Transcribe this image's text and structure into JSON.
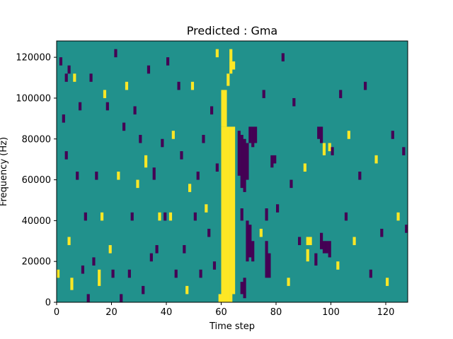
{
  "chart_data": {
    "type": "heatmap",
    "title": "Predicted : Gma",
    "xlabel": "Time step",
    "ylabel": "Frequency (Hz)",
    "xlim": [
      0,
      128
    ],
    "ylim": [
      0,
      128000
    ],
    "xticks": [
      0,
      20,
      40,
      60,
      80,
      100,
      120
    ],
    "yticks": [
      0,
      20000,
      40000,
      60000,
      80000,
      100000,
      120000
    ],
    "xtick_labels": [
      "0",
      "20",
      "40",
      "60",
      "80",
      "100",
      "120"
    ],
    "ytick_labels": [
      "0",
      "20000",
      "40000",
      "60000",
      "80000",
      "100000",
      "120000"
    ],
    "grid": false,
    "colormap": "viridis",
    "colors": {
      "low": "#440154",
      "mid": "#21918c",
      "high": "#fde725"
    },
    "background_level": "mid",
    "cells": [
      {
        "t": 59,
        "f_from": 0,
        "f_to": 4000,
        "level": "high"
      },
      {
        "t": 60,
        "f_from": 0,
        "f_to": 86000,
        "level": "high"
      },
      {
        "t": 61,
        "f_from": 0,
        "f_to": 86000,
        "level": "high"
      },
      {
        "t": 62,
        "f_from": 0,
        "f_to": 86000,
        "level": "high"
      },
      {
        "t": 63,
        "f_from": 0,
        "f_to": 86000,
        "level": "high"
      },
      {
        "t": 64,
        "f_from": 4000,
        "f_to": 86000,
        "level": "high"
      },
      {
        "t": 60,
        "f_from": 86000,
        "f_to": 104000,
        "level": "high"
      },
      {
        "t": 61,
        "f_from": 86000,
        "f_to": 104000,
        "level": "high"
      },
      {
        "t": 62,
        "f_from": 106000,
        "f_to": 112000,
        "level": "high"
      },
      {
        "t": 63,
        "f_from": 112000,
        "f_to": 118000,
        "level": "high"
      },
      {
        "t": 58,
        "f_from": 120000,
        "f_to": 124000,
        "level": "high"
      },
      {
        "t": 66,
        "f_from": 62000,
        "f_to": 84000,
        "level": "low"
      },
      {
        "t": 67,
        "f_from": 56000,
        "f_to": 82000,
        "level": "low"
      },
      {
        "t": 68,
        "f_from": 54000,
        "f_to": 80000,
        "level": "low"
      },
      {
        "t": 69,
        "f_from": 60000,
        "f_to": 78000,
        "level": "low"
      },
      {
        "t": 70,
        "f_from": 78000,
        "f_to": 86000,
        "level": "low"
      },
      {
        "t": 71,
        "f_from": 76000,
        "f_to": 86000,
        "level": "low"
      },
      {
        "t": 72,
        "f_from": 78000,
        "f_to": 86000,
        "level": "low"
      },
      {
        "t": 67,
        "f_from": 4000,
        "f_to": 10000,
        "level": "low"
      },
      {
        "t": 68,
        "f_from": 2000,
        "f_to": 12000,
        "level": "low"
      },
      {
        "t": 69,
        "f_from": 20000,
        "f_to": 40000,
        "level": "low"
      },
      {
        "t": 70,
        "f_from": 22000,
        "f_to": 38000,
        "level": "low"
      },
      {
        "t": 71,
        "f_from": 20000,
        "f_to": 30000,
        "level": "low"
      },
      {
        "t": 67,
        "f_from": 40000,
        "f_to": 46000,
        "level": "low"
      },
      {
        "t": 76,
        "f_from": 12000,
        "f_to": 30000,
        "level": "low"
      },
      {
        "t": 77,
        "f_from": 12000,
        "f_to": 24000,
        "level": "low"
      },
      {
        "t": 76,
        "f_from": 40000,
        "f_to": 46000,
        "level": "low"
      },
      {
        "t": 78,
        "f_from": 66000,
        "f_to": 72000,
        "level": "low"
      },
      {
        "t": 79,
        "f_from": 68000,
        "f_to": 72000,
        "level": "low"
      },
      {
        "t": 96,
        "f_from": 26000,
        "f_to": 34000,
        "level": "low"
      },
      {
        "t": 97,
        "f_from": 24000,
        "f_to": 30000,
        "level": "low"
      },
      {
        "t": 98,
        "f_from": 24000,
        "f_to": 30000,
        "level": "low"
      },
      {
        "t": 99,
        "f_from": 22000,
        "f_to": 30000,
        "level": "low"
      },
      {
        "t": 91,
        "f_from": 28000,
        "f_to": 32000,
        "level": "high"
      },
      {
        "t": 92,
        "f_from": 28000,
        "f_to": 32000,
        "level": "high"
      },
      {
        "t": 91,
        "f_from": 20000,
        "f_to": 26000,
        "level": "high"
      },
      {
        "t": 94,
        "f_from": 18000,
        "f_to": 24000,
        "level": "low"
      },
      {
        "t": 95,
        "f_from": 80000,
        "f_to": 86000,
        "level": "low"
      },
      {
        "t": 96,
        "f_from": 78000,
        "f_to": 86000,
        "level": "low"
      },
      {
        "t": 97,
        "f_from": 72000,
        "f_to": 78000,
        "level": "high"
      },
      {
        "t": 99,
        "f_from": 74000,
        "f_to": 78000,
        "level": "high"
      },
      {
        "t": 100,
        "f_from": 72000,
        "f_to": 76000,
        "level": "low"
      },
      {
        "t": 127,
        "f_from": 34000,
        "f_to": 36000,
        "level": "low"
      },
      {
        "t": 127,
        "f_from": 36000,
        "f_to": 38000,
        "level": "low"
      },
      {
        "t": 63,
        "f_from": 118000,
        "f_to": 124000,
        "level": "high"
      },
      {
        "t": 64,
        "f_from": 114000,
        "f_to": 118000,
        "level": "high"
      },
      {
        "t": 0,
        "f_from": 12000,
        "f_to": 16000,
        "level": "high"
      },
      {
        "t": 1,
        "f_from": 116000,
        "f_to": 120000,
        "level": "low"
      },
      {
        "t": 2,
        "f_from": 88000,
        "f_to": 92000,
        "level": "low"
      },
      {
        "t": 3,
        "f_from": 70000,
        "f_to": 74000,
        "level": "low"
      },
      {
        "t": 3,
        "f_from": 108000,
        "f_to": 112000,
        "level": "low"
      },
      {
        "t": 4,
        "f_from": 112000,
        "f_to": 116000,
        "level": "low"
      },
      {
        "t": 4,
        "f_from": 28000,
        "f_to": 32000,
        "level": "high"
      },
      {
        "t": 5,
        "f_from": 6000,
        "f_to": 12000,
        "level": "high"
      },
      {
        "t": 6,
        "f_from": 108000,
        "f_to": 112000,
        "level": "high"
      },
      {
        "t": 7,
        "f_from": 60000,
        "f_to": 64000,
        "level": "low"
      },
      {
        "t": 8,
        "f_from": 94000,
        "f_to": 98000,
        "level": "low"
      },
      {
        "t": 9,
        "f_from": 14000,
        "f_to": 18000,
        "level": "low"
      },
      {
        "t": 10,
        "f_from": 40000,
        "f_to": 44000,
        "level": "low"
      },
      {
        "t": 11,
        "f_from": 0,
        "f_to": 4000,
        "level": "low"
      },
      {
        "t": 12,
        "f_from": 108000,
        "f_to": 112000,
        "level": "low"
      },
      {
        "t": 13,
        "f_from": 18000,
        "f_to": 22000,
        "level": "low"
      },
      {
        "t": 14,
        "f_from": 60000,
        "f_to": 64000,
        "level": "low"
      },
      {
        "t": 15,
        "f_from": 8000,
        "f_to": 16000,
        "level": "high"
      },
      {
        "t": 16,
        "f_from": 40000,
        "f_to": 44000,
        "level": "high"
      },
      {
        "t": 17,
        "f_from": 100000,
        "f_to": 104000,
        "level": "high"
      },
      {
        "t": 18,
        "f_from": 94000,
        "f_to": 98000,
        "level": "low"
      },
      {
        "t": 19,
        "f_from": 24000,
        "f_to": 28000,
        "level": "high"
      },
      {
        "t": 20,
        "f_from": 12000,
        "f_to": 16000,
        "level": "low"
      },
      {
        "t": 21,
        "f_from": 120000,
        "f_to": 124000,
        "level": "low"
      },
      {
        "t": 22,
        "f_from": 60000,
        "f_to": 64000,
        "level": "high"
      },
      {
        "t": 23,
        "f_from": 0,
        "f_to": 4000,
        "level": "low"
      },
      {
        "t": 24,
        "f_from": 84000,
        "f_to": 88000,
        "level": "low"
      },
      {
        "t": 25,
        "f_from": 104000,
        "f_to": 108000,
        "level": "high"
      },
      {
        "t": 26,
        "f_from": 12000,
        "f_to": 16000,
        "level": "low"
      },
      {
        "t": 27,
        "f_from": 40000,
        "f_to": 44000,
        "level": "low"
      },
      {
        "t": 28,
        "f_from": 92000,
        "f_to": 96000,
        "level": "low"
      },
      {
        "t": 29,
        "f_from": 56000,
        "f_to": 60000,
        "level": "high"
      },
      {
        "t": 30,
        "f_from": 78000,
        "f_to": 82000,
        "level": "low"
      },
      {
        "t": 31,
        "f_from": 4000,
        "f_to": 8000,
        "level": "low"
      },
      {
        "t": 32,
        "f_from": 66000,
        "f_to": 72000,
        "level": "high"
      },
      {
        "t": 33,
        "f_from": 112000,
        "f_to": 116000,
        "level": "low"
      },
      {
        "t": 34,
        "f_from": 20000,
        "f_to": 24000,
        "level": "low"
      },
      {
        "t": 35,
        "f_from": 60000,
        "f_to": 66000,
        "level": "low"
      },
      {
        "t": 36,
        "f_from": 24000,
        "f_to": 28000,
        "level": "low"
      },
      {
        "t": 37,
        "f_from": 40000,
        "f_to": 44000,
        "level": "high"
      },
      {
        "t": 38,
        "f_from": 76000,
        "f_to": 80000,
        "level": "low"
      },
      {
        "t": 39,
        "f_from": 40000,
        "f_to": 44000,
        "level": "low"
      },
      {
        "t": 40,
        "f_from": 116000,
        "f_to": 120000,
        "level": "low"
      },
      {
        "t": 41,
        "f_from": 40000,
        "f_to": 44000,
        "level": "high"
      },
      {
        "t": 42,
        "f_from": 80000,
        "f_to": 84000,
        "level": "high"
      },
      {
        "t": 43,
        "f_from": 12000,
        "f_to": 16000,
        "level": "low"
      },
      {
        "t": 44,
        "f_from": 104000,
        "f_to": 108000,
        "level": "low"
      },
      {
        "t": 45,
        "f_from": 70000,
        "f_to": 74000,
        "level": "low"
      },
      {
        "t": 46,
        "f_from": 24000,
        "f_to": 28000,
        "level": "low"
      },
      {
        "t": 47,
        "f_from": 4000,
        "f_to": 8000,
        "level": "high"
      },
      {
        "t": 48,
        "f_from": 54000,
        "f_to": 58000,
        "level": "high"
      },
      {
        "t": 49,
        "f_from": 104000,
        "f_to": 108000,
        "level": "high"
      },
      {
        "t": 50,
        "f_from": 40000,
        "f_to": 44000,
        "level": "low"
      },
      {
        "t": 51,
        "f_from": 60000,
        "f_to": 64000,
        "level": "low"
      },
      {
        "t": 52,
        "f_from": 12000,
        "f_to": 16000,
        "level": "low"
      },
      {
        "t": 53,
        "f_from": 78000,
        "f_to": 82000,
        "level": "low"
      },
      {
        "t": 54,
        "f_from": 44000,
        "f_to": 48000,
        "level": "high"
      },
      {
        "t": 55,
        "f_from": 32000,
        "f_to": 36000,
        "level": "low"
      },
      {
        "t": 56,
        "f_from": 92000,
        "f_to": 96000,
        "level": "low"
      },
      {
        "t": 57,
        "f_from": 16000,
        "f_to": 20000,
        "level": "low"
      },
      {
        "t": 58,
        "f_from": 64000,
        "f_to": 68000,
        "level": "low"
      },
      {
        "t": 74,
        "f_from": 32000,
        "f_to": 36000,
        "level": "high"
      },
      {
        "t": 75,
        "f_from": 100000,
        "f_to": 104000,
        "level": "low"
      },
      {
        "t": 80,
        "f_from": 44000,
        "f_to": 48000,
        "level": "low"
      },
      {
        "t": 82,
        "f_from": 118000,
        "f_to": 122000,
        "level": "low"
      },
      {
        "t": 84,
        "f_from": 8000,
        "f_to": 12000,
        "level": "high"
      },
      {
        "t": 85,
        "f_from": 56000,
        "f_to": 60000,
        "level": "low"
      },
      {
        "t": 86,
        "f_from": 96000,
        "f_to": 100000,
        "level": "low"
      },
      {
        "t": 88,
        "f_from": 28000,
        "f_to": 32000,
        "level": "low"
      },
      {
        "t": 90,
        "f_from": 64000,
        "f_to": 68000,
        "level": "high"
      },
      {
        "t": 102,
        "f_from": 16000,
        "f_to": 20000,
        "level": "high"
      },
      {
        "t": 103,
        "f_from": 100000,
        "f_to": 104000,
        "level": "low"
      },
      {
        "t": 105,
        "f_from": 40000,
        "f_to": 44000,
        "level": "low"
      },
      {
        "t": 106,
        "f_from": 80000,
        "f_to": 84000,
        "level": "high"
      },
      {
        "t": 108,
        "f_from": 28000,
        "f_to": 32000,
        "level": "high"
      },
      {
        "t": 110,
        "f_from": 60000,
        "f_to": 64000,
        "level": "low"
      },
      {
        "t": 112,
        "f_from": 104000,
        "f_to": 108000,
        "level": "low"
      },
      {
        "t": 114,
        "f_from": 12000,
        "f_to": 16000,
        "level": "low"
      },
      {
        "t": 116,
        "f_from": 68000,
        "f_to": 72000,
        "level": "high"
      },
      {
        "t": 118,
        "f_from": 32000,
        "f_to": 36000,
        "level": "low"
      },
      {
        "t": 120,
        "f_from": 8000,
        "f_to": 12000,
        "level": "high"
      },
      {
        "t": 122,
        "f_from": 80000,
        "f_to": 84000,
        "level": "low"
      },
      {
        "t": 124,
        "f_from": 40000,
        "f_to": 44000,
        "level": "high"
      },
      {
        "t": 126,
        "f_from": 72000,
        "f_to": 76000,
        "level": "low"
      }
    ]
  }
}
